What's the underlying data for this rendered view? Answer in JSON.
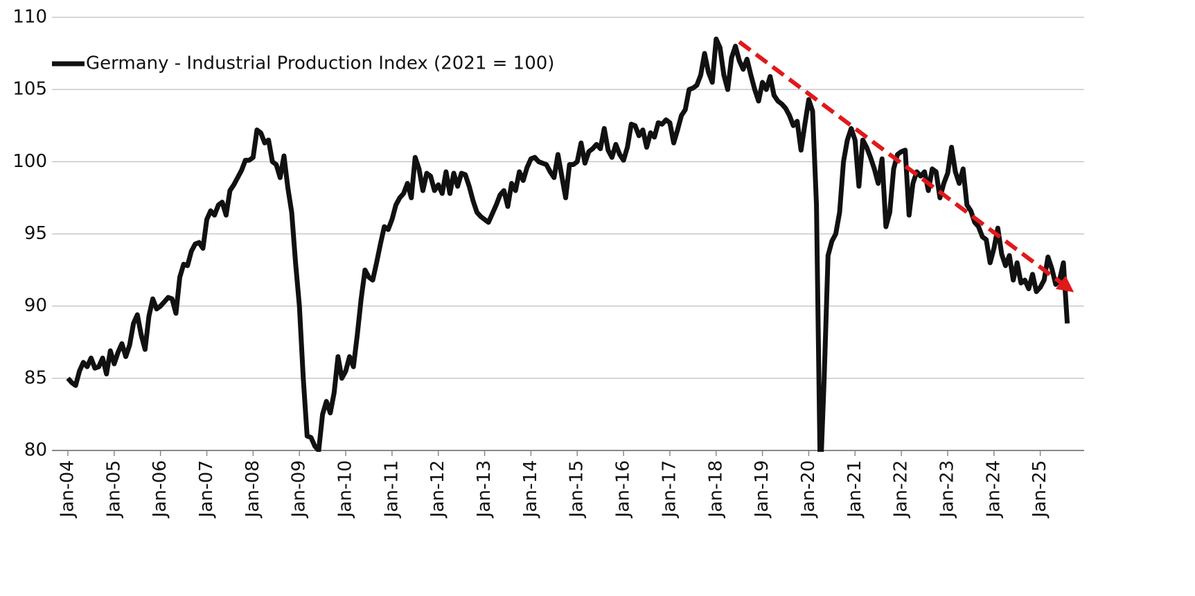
{
  "chart_data": {
    "type": "line",
    "categories": [
      "Jan-04",
      null,
      null,
      null,
      null,
      null,
      null,
      null,
      null,
      null,
      null,
      null,
      "Jan-05",
      null,
      null,
      null,
      null,
      null,
      null,
      null,
      null,
      null,
      null,
      null,
      "Jan-06",
      null,
      null,
      null,
      null,
      null,
      null,
      null,
      null,
      null,
      null,
      null,
      "Jan-07",
      null,
      null,
      null,
      null,
      null,
      null,
      null,
      null,
      null,
      null,
      null,
      "Jan-08",
      null,
      null,
      null,
      null,
      null,
      null,
      null,
      null,
      null,
      null,
      null,
      "Jan-09",
      null,
      null,
      null,
      null,
      null,
      null,
      null,
      null,
      null,
      null,
      null,
      "Jan-10",
      null,
      null,
      null,
      null,
      null,
      null,
      null,
      null,
      null,
      null,
      null,
      "Jan-11",
      null,
      null,
      null,
      null,
      null,
      null,
      null,
      null,
      null,
      null,
      null,
      "Jan-12",
      null,
      null,
      null,
      null,
      null,
      null,
      null,
      null,
      null,
      null,
      null,
      "Jan-13",
      null,
      null,
      null,
      null,
      null,
      null,
      null,
      null,
      null,
      null,
      null,
      "Jan-14",
      null,
      null,
      null,
      null,
      null,
      null,
      null,
      null,
      null,
      null,
      null,
      "Jan-15",
      null,
      null,
      null,
      null,
      null,
      null,
      null,
      null,
      null,
      null,
      null,
      "Jan-16",
      null,
      null,
      null,
      null,
      null,
      null,
      null,
      null,
      null,
      null,
      null,
      "Jan-17",
      null,
      null,
      null,
      null,
      null,
      null,
      null,
      null,
      null,
      null,
      null,
      "Jan-18",
      null,
      null,
      null,
      null,
      null,
      null,
      null,
      null,
      null,
      null,
      null,
      "Jan-19",
      null,
      null,
      null,
      null,
      null,
      null,
      null,
      null,
      null,
      null,
      null,
      "Jan-20",
      null,
      null,
      null,
      null,
      null,
      null,
      null,
      null,
      null,
      null,
      null,
      "Jan-21",
      null,
      null,
      null,
      null,
      null,
      null,
      null,
      null,
      null,
      null,
      null,
      "Jan-22",
      null,
      null,
      null,
      null,
      null,
      null,
      null,
      null,
      null,
      null,
      null,
      "Jan-23",
      null,
      null,
      null,
      null,
      null,
      null,
      null,
      null,
      null,
      null,
      null,
      "Jan-24",
      null,
      null,
      null,
      null,
      null,
      null,
      null,
      null,
      null,
      null,
      null,
      "Jan-25",
      null,
      null,
      null,
      null,
      null,
      null,
      null
    ],
    "series": [
      {
        "name": "Germany - Industrial Production Index (2021 = 100)",
        "color": "#111111",
        "values": [
          85.0,
          84.7,
          84.5,
          85.5,
          86.1,
          85.8,
          86.4,
          85.7,
          85.8,
          86.4,
          85.3,
          86.9,
          86.0,
          86.8,
          87.4,
          86.5,
          87.3,
          88.8,
          89.4,
          88.0,
          87.0,
          89.3,
          90.5,
          89.8,
          90.0,
          90.3,
          90.6,
          90.5,
          89.5,
          92.0,
          92.9,
          92.8,
          93.8,
          94.3,
          94.4,
          94.0,
          96.0,
          96.6,
          96.3,
          97.0,
          97.2,
          96.3,
          98.0,
          98.4,
          98.9,
          99.4,
          100.1,
          100.1,
          100.3,
          102.2,
          102.0,
          101.3,
          101.5,
          100.0,
          99.8,
          98.9,
          100.4,
          98.2,
          96.5,
          93.0,
          90.0,
          85.0,
          81.0,
          80.9,
          80.3,
          80.0,
          82.5,
          83.4,
          82.6,
          84.0,
          86.5,
          85.0,
          85.5,
          86.5,
          85.8,
          88.0,
          90.5,
          92.5,
          92.0,
          91.8,
          93.0,
          94.3,
          95.5,
          95.3,
          96.0,
          97.0,
          97.5,
          97.8,
          98.5,
          97.5,
          100.3,
          99.5,
          98.0,
          99.2,
          99.0,
          98.0,
          98.4,
          97.8,
          99.3,
          97.8,
          99.2,
          98.3,
          99.2,
          99.1,
          98.3,
          97.3,
          96.5,
          96.2,
          96.0,
          95.8,
          96.4,
          97.0,
          97.7,
          98.0,
          96.9,
          98.5,
          98.0,
          99.3,
          98.7,
          99.6,
          100.2,
          100.3,
          100.0,
          99.9,
          99.8,
          99.3,
          98.9,
          100.5,
          99.0,
          97.5,
          99.8,
          99.8,
          100.0,
          101.3,
          99.9,
          100.7,
          100.9,
          101.2,
          100.9,
          102.3,
          100.8,
          100.3,
          101.2,
          100.5,
          100.1,
          101.0,
          102.6,
          102.5,
          101.8,
          102.2,
          101.0,
          102.0,
          101.7,
          102.7,
          102.6,
          102.9,
          102.7,
          101.3,
          102.2,
          103.2,
          103.6,
          105.0,
          105.1,
          105.3,
          106.0,
          107.5,
          106.2,
          105.5,
          108.5,
          107.9,
          106.0,
          105.0,
          107.2,
          108.0,
          107.0,
          106.4,
          107.1,
          106.0,
          105.0,
          104.2,
          105.5,
          105.0,
          105.9,
          104.6,
          104.2,
          104.0,
          103.7,
          103.2,
          102.5,
          102.8,
          100.8,
          102.6,
          104.3,
          103.5,
          97.0,
          78.0,
          85.0,
          93.5,
          94.5,
          95.0,
          96.5,
          100.0,
          101.5,
          102.3,
          101.5,
          98.3,
          101.5,
          101.0,
          100.3,
          99.5,
          98.5,
          100.2,
          95.5,
          96.5,
          99.5,
          100.5,
          100.7,
          100.8,
          96.3,
          98.5,
          99.3,
          99.0,
          99.3,
          98.0,
          99.5,
          99.3,
          97.5,
          98.5,
          99.2,
          101.0,
          99.3,
          98.5,
          99.5,
          97.0,
          96.6,
          95.8,
          95.5,
          94.8,
          94.6,
          93.0,
          94.0,
          95.4,
          93.6,
          92.8,
          93.5,
          91.8,
          93.0,
          91.6,
          91.8,
          91.2,
          92.2,
          91.0,
          91.3,
          91.8,
          93.4,
          92.6,
          91.5,
          91.8,
          93.0,
          88.8
        ]
      }
    ],
    "trend_line": {
      "color": "#e0191b",
      "values": [
        null,
        null,
        null,
        null,
        null,
        null,
        null,
        null,
        null,
        null,
        null,
        null,
        null,
        null,
        null,
        null,
        null,
        null,
        null,
        null,
        null,
        null,
        null,
        null,
        null,
        null,
        null,
        null,
        null,
        null,
        null,
        null,
        null,
        null,
        null,
        null,
        null,
        null,
        null,
        null,
        null,
        null,
        null,
        null,
        null,
        null,
        null,
        null,
        null,
        null,
        null,
        null,
        null,
        null,
        null,
        null,
        null,
        null,
        null,
        null,
        null,
        null,
        null,
        null,
        null,
        null,
        null,
        null,
        null,
        null,
        null,
        null,
        null,
        null,
        null,
        null,
        null,
        null,
        null,
        null,
        null,
        null,
        null,
        null,
        null,
        null,
        null,
        null,
        null,
        null,
        null,
        null,
        null,
        null,
        null,
        null,
        null,
        null,
        null,
        null,
        null,
        null,
        null,
        null,
        null,
        null,
        null,
        null,
        null,
        null,
        null,
        null,
        null,
        null,
        null,
        null,
        null,
        null,
        null,
        null,
        null,
        null,
        null,
        null,
        null,
        null,
        null,
        null,
        null,
        null,
        null,
        null,
        null,
        null,
        null,
        null,
        null,
        null,
        null,
        null,
        null,
        null,
        null,
        null,
        null,
        null,
        null,
        null,
        null,
        null,
        null,
        null,
        null,
        null,
        null,
        null,
        null,
        null,
        null,
        null,
        null,
        null,
        null,
        null,
        null,
        null,
        null,
        null,
        null,
        null,
        null,
        null,
        null,
        null,
        108.3,
        108.1,
        107.9,
        107.7,
        107.5,
        107.3,
        107.1,
        106.9,
        106.7,
        106.5,
        106.3,
        106.1,
        105.9,
        105.7,
        105.5,
        105.3,
        105.1,
        104.9,
        104.7,
        104.5,
        104.3,
        104.1,
        103.9,
        103.7,
        103.5,
        103.3,
        103.1,
        102.9,
        102.7,
        102.5,
        102.3,
        102.1,
        101.9,
        101.7,
        101.5,
        101.3,
        101.1,
        100.9,
        100.7,
        100.5,
        100.3,
        100.1,
        99.9,
        99.7,
        99.5,
        99.3,
        99.1,
        98.9,
        98.7,
        98.5,
        98.3,
        98.1,
        97.9,
        97.7,
        97.5,
        97.3,
        97.1,
        96.9,
        96.7,
        96.5,
        96.3,
        96.1,
        95.9,
        95.7,
        95.5,
        95.3,
        95.1,
        94.9,
        94.7,
        94.5,
        94.3,
        94.1,
        93.9,
        93.7,
        93.5,
        93.3,
        93.1,
        92.9,
        92.7,
        92.5,
        92.3,
        92.1,
        91.9,
        91.7,
        91.5,
        91.3
      ]
    },
    "ylim": [
      80,
      110
    ],
    "yticks": [
      80,
      85,
      90,
      95,
      100,
      105,
      110
    ],
    "grid": true
  }
}
